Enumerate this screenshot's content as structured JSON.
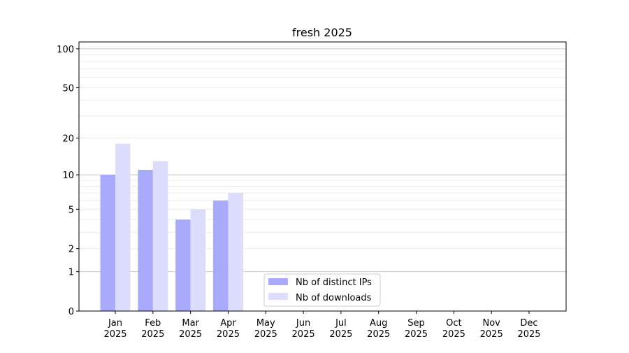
{
  "chart_data": {
    "type": "bar",
    "title": "fresh 2025",
    "xlabel": "",
    "ylabel": "",
    "y_scale": "symlog (log10(1+y))",
    "ylim": [
      0,
      113
    ],
    "y_ticks": [
      0,
      1,
      2,
      5,
      10,
      20,
      50,
      100
    ],
    "grid": "horizontal major and minor",
    "legend_position": "bottom-center",
    "categories": [
      "Jan\n2025",
      "Feb\n2025",
      "Mar\n2025",
      "Apr\n2025",
      "May\n2025",
      "Jun\n2025",
      "Jul\n2025",
      "Aug\n2025",
      "Sep\n2025",
      "Oct\n2025",
      "Nov\n2025",
      "Dec\n2025"
    ],
    "series": [
      {
        "name": "Nb of distinct IPs",
        "color": "#aaaafc",
        "values": [
          10,
          11,
          4,
          6,
          null,
          null,
          null,
          null,
          null,
          null,
          null,
          null
        ]
      },
      {
        "name": "Nb of downloads",
        "color": "#dcdcfc",
        "values": [
          18,
          13,
          5,
          7,
          null,
          null,
          null,
          null,
          null,
          null,
          null,
          null
        ]
      }
    ]
  }
}
